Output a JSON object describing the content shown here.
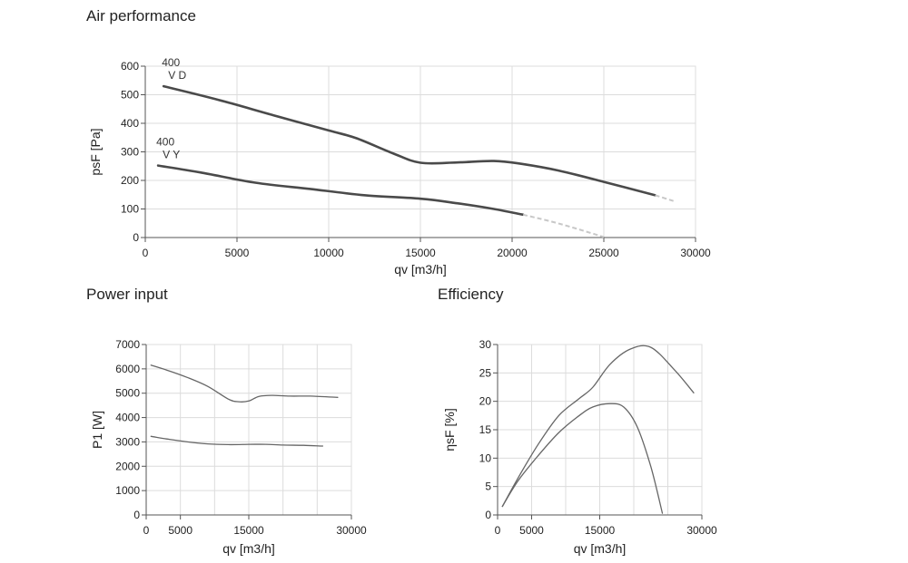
{
  "headings": {
    "air": "Air performance",
    "power": "Power input",
    "efficiency": "Efficiency"
  },
  "chart_data": [
    {
      "type": "line",
      "title": "Air performance",
      "xlabel": "qv [m3/h]",
      "ylabel": "psF [Pa]",
      "xlim": [
        0,
        30000
      ],
      "ylim": [
        0,
        600
      ],
      "xticks": [
        0,
        5000,
        10000,
        15000,
        20000,
        25000,
        30000
      ],
      "yticks": [
        0,
        100,
        200,
        300,
        400,
        500,
        600
      ],
      "grid": true,
      "series": [
        {
          "name": "400 V D",
          "label_lines": [
            "400",
            "V D"
          ],
          "x": [
            1000,
            4000,
            7000,
            10000,
            11500,
            13500,
            15000,
            17000,
            19000,
            20500,
            22500,
            25000,
            27800
          ],
          "y": [
            530,
            482,
            428,
            375,
            348,
            295,
            262,
            263,
            268,
            258,
            235,
            195,
            148
          ],
          "dashed_extension": {
            "x": [
              27800,
              28800
            ],
            "y": [
              148,
              128
            ]
          }
        },
        {
          "name": "400 V Y",
          "label_lines": [
            "400",
            "V Y"
          ],
          "x": [
            700,
            3000,
            6000,
            9000,
            12000,
            15000,
            17000,
            19000,
            20600
          ],
          "y": [
            252,
            228,
            192,
            170,
            148,
            136,
            120,
            100,
            80
          ],
          "dashed_extension": {
            "x": [
              20600,
              22500,
              25000
            ],
            "y": [
              80,
              50,
              2
            ]
          }
        }
      ]
    },
    {
      "type": "line",
      "title": "Power input",
      "xlabel": "qv [m3/h]",
      "ylabel": "P1 [W]",
      "xlim": [
        0,
        30000
      ],
      "ylim": [
        0,
        7000
      ],
      "xticks": [
        0,
        5000,
        15000,
        30000
      ],
      "gridx": [
        0,
        5000,
        10000,
        15000,
        20000,
        25000,
        30000
      ],
      "yticks": [
        0,
        1000,
        2000,
        3000,
        4000,
        5000,
        6000,
        7000
      ],
      "grid": true,
      "series": [
        {
          "x": [
            700,
            3000,
            6000,
            9000,
            12000,
            13500,
            15000,
            16500,
            18500,
            21000,
            24000,
            28000
          ],
          "y": [
            6150,
            5950,
            5650,
            5280,
            4760,
            4650,
            4680,
            4870,
            4910,
            4880,
            4880,
            4830
          ]
        },
        {
          "x": [
            700,
            3000,
            6000,
            9000,
            12000,
            15000,
            17500,
            20000,
            23000,
            25800
          ],
          "y": [
            3230,
            3120,
            3000,
            2920,
            2890,
            2900,
            2900,
            2870,
            2860,
            2830
          ]
        }
      ]
    },
    {
      "type": "line",
      "title": "Efficiency",
      "xlabel": "qv [m3/h]",
      "ylabel": "ηsF [%]",
      "xlim": [
        0,
        30000
      ],
      "ylim": [
        0,
        30
      ],
      "xticks": [
        0,
        5000,
        15000,
        30000
      ],
      "gridx": [
        0,
        5000,
        10000,
        15000,
        20000,
        25000,
        30000
      ],
      "yticks": [
        0,
        5,
        10,
        15,
        20,
        25,
        30
      ],
      "grid": true,
      "series": [
        {
          "x": [
            700,
            3000,
            6000,
            9000,
            12000,
            14000,
            16500,
            19500,
            22500,
            26000,
            28800
          ],
          "y": [
            1.5,
            6.5,
            12.5,
            17.5,
            20.5,
            22.5,
            26.5,
            29.2,
            29.5,
            25.5,
            21.5
          ]
        },
        {
          "x": [
            700,
            3000,
            6000,
            9000,
            12000,
            14000,
            16500,
            18500,
            20500,
            22500,
            24200
          ],
          "y": [
            1.5,
            6.0,
            10.5,
            14.5,
            17.5,
            19.0,
            19.6,
            19.0,
            15.5,
            8.5,
            0.3
          ]
        }
      ]
    }
  ]
}
